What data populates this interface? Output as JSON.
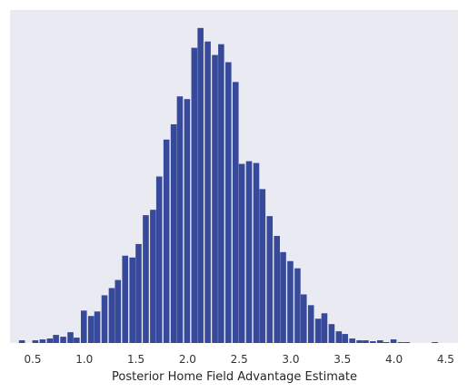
{
  "chart_data": {
    "type": "bar",
    "title": "",
    "xlabel": "Posterior Home Field Advantage Estimate",
    "ylabel": "",
    "xlim": [
      0.28,
      4.62
    ],
    "ylim": [
      0,
      370
    ],
    "grid": false,
    "x_ticks": [
      "0.5",
      "1.0",
      "1.5",
      "2.0",
      "2.5",
      "3.0",
      "3.5",
      "4.0",
      "4.5"
    ],
    "bin_width": 0.0667,
    "bin_centers": [
      0.4,
      0.53,
      0.6,
      0.67,
      0.73,
      0.8,
      0.87,
      0.93,
      1.0,
      1.07,
      1.13,
      1.2,
      1.27,
      1.33,
      1.4,
      1.47,
      1.53,
      1.6,
      1.67,
      1.73,
      1.8,
      1.87,
      1.93,
      2.0,
      2.07,
      2.13,
      2.2,
      2.27,
      2.33,
      2.4,
      2.47,
      2.53,
      2.6,
      2.67,
      2.73,
      2.8,
      2.87,
      2.93,
      3.0,
      3.07,
      3.13,
      3.2,
      3.27,
      3.33,
      3.4,
      3.47,
      3.53,
      3.6,
      3.67,
      3.73,
      3.8,
      3.87,
      3.93,
      4.0,
      4.07,
      4.13,
      4.4
    ],
    "counts": [
      3,
      3,
      4,
      5,
      9,
      7,
      12,
      6,
      36,
      30,
      35,
      53,
      61,
      70,
      97,
      95,
      110,
      142,
      148,
      185,
      226,
      243,
      274,
      271,
      328,
      350,
      335,
      320,
      332,
      312,
      290,
      199,
      202,
      200,
      171,
      141,
      119,
      101,
      91,
      83,
      54,
      42,
      27,
      33,
      21,
      13,
      10,
      5,
      3,
      3,
      2,
      3,
      1,
      4,
      1,
      1,
      1
    ]
  }
}
